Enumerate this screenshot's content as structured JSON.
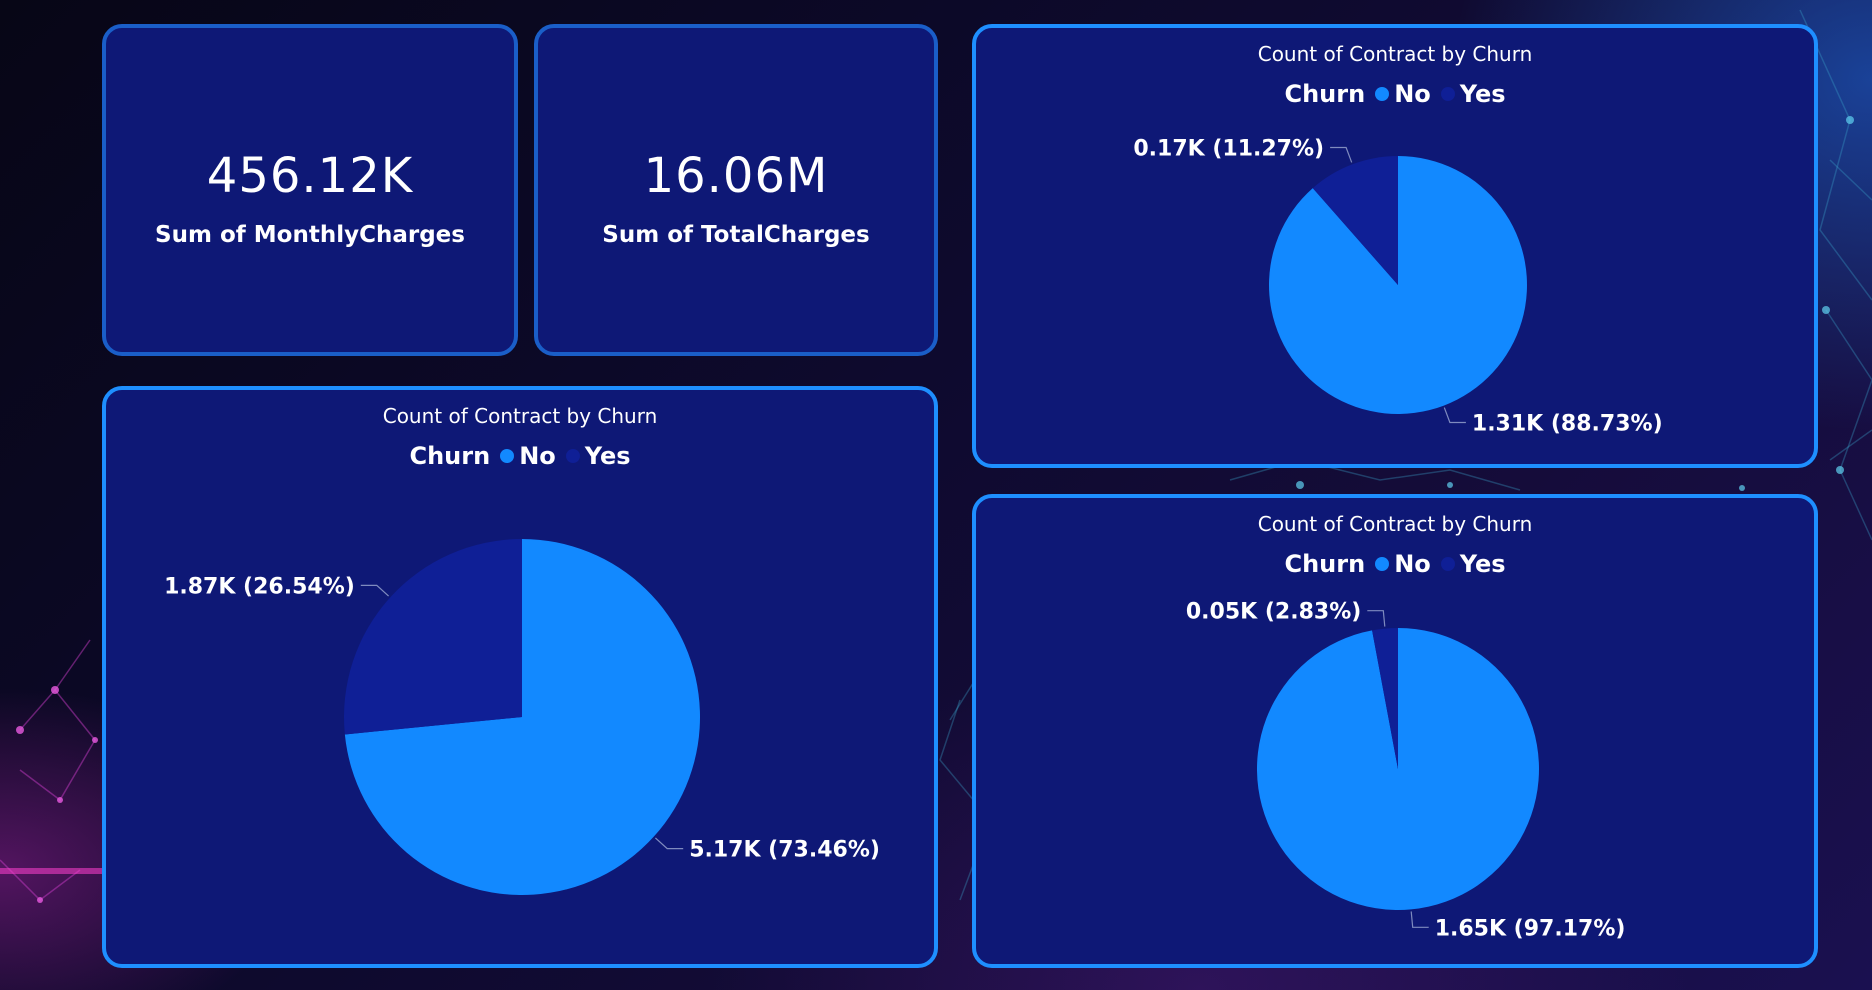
{
  "colors": {
    "no": "#1289ff",
    "yes": "#0f1f96",
    "leader": "#7f8bbf"
  },
  "kpis": [
    {
      "value": "456.12K",
      "label": "Sum of MonthlyCharges"
    },
    {
      "value": "16.06M",
      "label": "Sum of TotalCharges"
    }
  ],
  "chart_data": [
    {
      "type": "pie",
      "title": "Count of Contract by Churn",
      "legend_title": "Churn",
      "legend_position": "top",
      "categories": [
        "No",
        "Yes"
      ],
      "values": [
        5170,
        1870
      ],
      "percentages": [
        73.46,
        26.54
      ],
      "data_labels": [
        "5.17K (73.46%)",
        "1.87K (26.54%)"
      ]
    },
    {
      "type": "pie",
      "title": "Count of Contract by Churn",
      "legend_title": "Churn",
      "legend_position": "top",
      "categories": [
        "No",
        "Yes"
      ],
      "values": [
        1310,
        170
      ],
      "percentages": [
        88.73,
        11.27
      ],
      "data_labels": [
        "1.31K (88.73%)",
        "0.17K (11.27%)"
      ]
    },
    {
      "type": "pie",
      "title": "Count of Contract by Churn",
      "legend_title": "Churn",
      "legend_position": "top",
      "categories": [
        "No",
        "Yes"
      ],
      "values": [
        1650,
        50
      ],
      "percentages": [
        97.17,
        2.83
      ],
      "data_labels": [
        "1.65K (97.17%)",
        "0.05K (2.83%)"
      ]
    }
  ]
}
